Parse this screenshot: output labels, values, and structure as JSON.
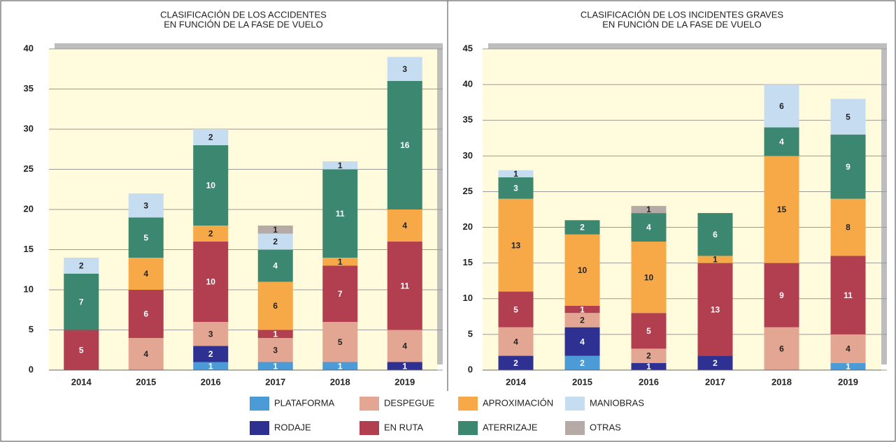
{
  "chart_data": [
    {
      "type": "bar",
      "stacked": true,
      "title": [
        "CLASIFICACIÓN DE LOS ACCIDENTES",
        "EN FUNCIÓN DE LA FASE DE VUELO"
      ],
      "categories": [
        "2014",
        "2015",
        "2016",
        "2017",
        "2018",
        "2019"
      ],
      "ylim": [
        0,
        40
      ],
      "yticks": [
        0,
        5,
        10,
        15,
        20,
        25,
        30,
        35,
        40
      ],
      "grid": true,
      "series": [
        {
          "name": "PLATAFORMA",
          "color": "#4a9bd6",
          "values": [
            null,
            null,
            1,
            1,
            1,
            null
          ]
        },
        {
          "name": "RODAJE",
          "color": "#2e3192",
          "values": [
            null,
            null,
            2,
            null,
            null,
            1
          ]
        },
        {
          "name": "DESPEGUE",
          "color": "#e3a693",
          "values": [
            null,
            4,
            3,
            3,
            5,
            4
          ]
        },
        {
          "name": "EN RUTA",
          "color": "#b13f4f",
          "values": [
            5,
            6,
            10,
            1,
            7,
            11
          ]
        },
        {
          "name": "APROXIMACIÓN",
          "color": "#f7a948",
          "values": [
            null,
            4,
            2,
            6,
            1,
            4
          ]
        },
        {
          "name": "ATERRIZAJE",
          "color": "#3b8770",
          "values": [
            7,
            5,
            10,
            4,
            11,
            16
          ]
        },
        {
          "name": "MANIOBRAS",
          "color": "#c6dcf0",
          "values": [
            2,
            3,
            2,
            2,
            1,
            3
          ]
        },
        {
          "name": "OTRAS",
          "color": "#b5aaa6",
          "values": [
            null,
            null,
            null,
            1,
            null,
            null
          ]
        }
      ]
    },
    {
      "type": "bar",
      "stacked": true,
      "title": [
        "CLASIFICACIÓN DE LOS INCIDENTES GRAVES",
        "EN FUNCIÓN DE LA FASE DE VUELO"
      ],
      "categories": [
        "2014",
        "2015",
        "2016",
        "2017",
        "2018",
        "2019"
      ],
      "ylim": [
        0,
        45
      ],
      "yticks": [
        0,
        5,
        10,
        15,
        20,
        25,
        30,
        35,
        40,
        45
      ],
      "grid": true,
      "series": [
        {
          "values": [
            null,
            2,
            null,
            null,
            null,
            1
          ]
        },
        {
          "values": [
            2,
            4,
            1,
            2,
            null,
            null
          ]
        },
        {
          "values": [
            4,
            2,
            2,
            null,
            6,
            4
          ]
        },
        {
          "values": [
            5,
            1,
            5,
            13,
            9,
            11
          ]
        },
        {
          "values": [
            13,
            10,
            10,
            1,
            15,
            8
          ]
        },
        {
          "values": [
            3,
            2,
            4,
            6,
            4,
            9
          ]
        },
        {
          "values": [
            1,
            null,
            null,
            null,
            6,
            5
          ]
        },
        {
          "values": [
            null,
            null,
            1,
            null,
            null,
            null
          ]
        }
      ]
    }
  ]
}
